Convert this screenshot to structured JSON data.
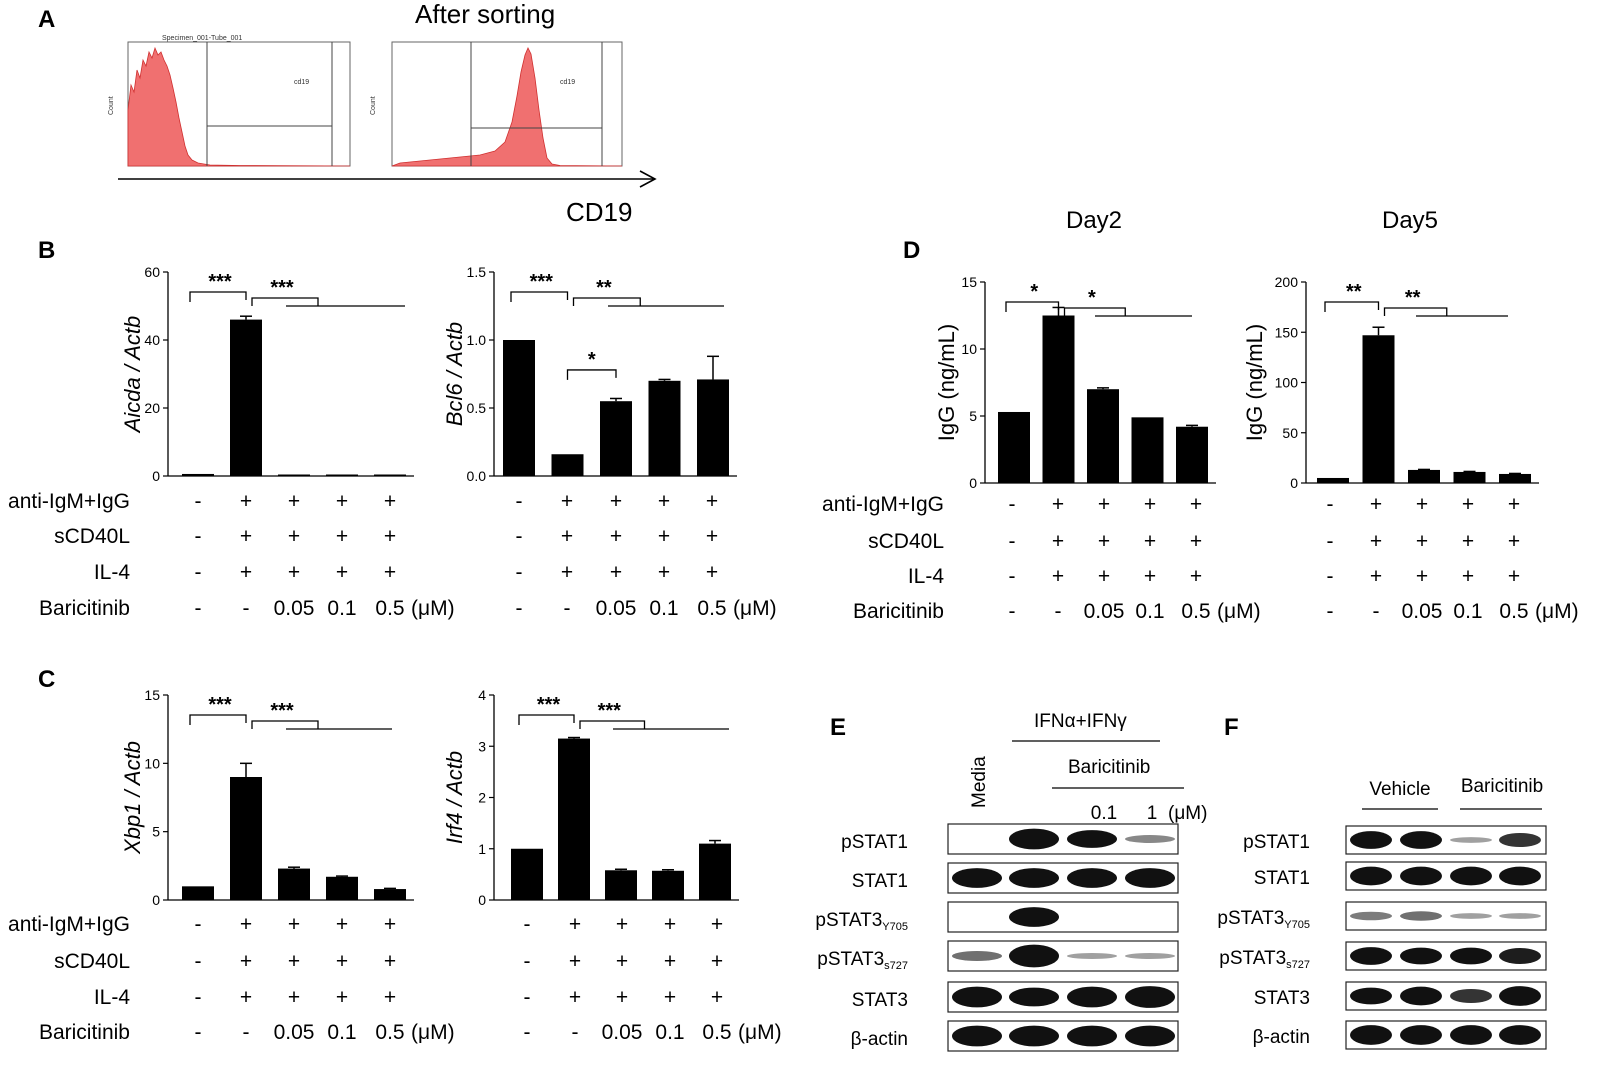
{
  "panel_labels": {
    "A": "A",
    "B": "B",
    "C": "C",
    "D": "D",
    "E": "E",
    "F": "F"
  },
  "flow": {
    "plot1_title": "Specimen_001-Tube_001",
    "plot2_title": "After sorting",
    "gate_label": "cd19",
    "y_label": "Count",
    "x_axis": "CD19"
  },
  "conditions": {
    "row_labels": [
      "anti-IgM+IgG",
      "sCD40L",
      "IL-4",
      "Baricitinib"
    ],
    "rows": [
      [
        "-",
        "+",
        "+",
        "+",
        "+"
      ],
      [
        "-",
        "+",
        "+",
        "+",
        "+"
      ],
      [
        "-",
        "+",
        "+",
        "+",
        "+"
      ],
      [
        "-",
        "-",
        "0.05",
        "0.1",
        "0.5"
      ]
    ],
    "unit": "(μM)"
  },
  "d_titles": [
    "Day2",
    "Day5"
  ],
  "chart_data": [
    {
      "id": "B1",
      "type": "bar",
      "title": "",
      "ylabel": "Aicda / Actb",
      "ylim": [
        0,
        60
      ],
      "yticks": [
        0,
        20,
        40,
        60
      ],
      "values": [
        0.6,
        46,
        0.3,
        0.2,
        0.2
      ],
      "errors": [
        0,
        1,
        0,
        0,
        0
      ],
      "sig": [
        {
          "text": "***",
          "kind": "pair",
          "from": 0,
          "to": 1
        },
        {
          "text": "***",
          "kind": "group",
          "from": 1,
          "to": 4
        }
      ]
    },
    {
      "id": "B2",
      "type": "bar",
      "title": "",
      "ylabel": "Bcl6 / Actb",
      "ylim": [
        0,
        1.5
      ],
      "yticks": [
        0.0,
        0.5,
        1.0,
        1.5
      ],
      "values": [
        1.0,
        0.16,
        0.55,
        0.7,
        0.71
      ],
      "errors": [
        0,
        0,
        0.02,
        0.01,
        0.17
      ],
      "sig": [
        {
          "text": "***",
          "kind": "pair",
          "from": 0,
          "to": 1
        },
        {
          "text": "**",
          "kind": "group",
          "from": 1,
          "to": 4
        },
        {
          "text": "*",
          "kind": "pair",
          "from": 1,
          "to": 2
        }
      ]
    },
    {
      "id": "C1",
      "type": "bar",
      "title": "",
      "ylabel": "Xbp1 / Actb",
      "ylim": [
        0,
        15
      ],
      "yticks": [
        0,
        5,
        10,
        15
      ],
      "values": [
        1.0,
        9.0,
        2.3,
        1.7,
        0.8
      ],
      "errors": [
        0,
        1.0,
        0.1,
        0.05,
        0.05
      ],
      "sig": [
        {
          "text": "***",
          "kind": "pair",
          "from": 0,
          "to": 1
        },
        {
          "text": "***",
          "kind": "group",
          "from": 1,
          "to": 4
        }
      ]
    },
    {
      "id": "C2",
      "type": "bar",
      "title": "",
      "ylabel": "Irf4 / Actb",
      "ylim": [
        0,
        4
      ],
      "yticks": [
        0,
        1,
        2,
        3,
        4
      ],
      "values": [
        1.0,
        3.15,
        0.58,
        0.57,
        1.1
      ],
      "errors": [
        0,
        0.02,
        0.02,
        0.02,
        0.06
      ],
      "sig": [
        {
          "text": "***",
          "kind": "pair",
          "from": 0,
          "to": 1
        },
        {
          "text": "***",
          "kind": "group",
          "from": 1,
          "to": 4
        }
      ]
    },
    {
      "id": "D1",
      "type": "bar",
      "title": "Day2",
      "ylabel": "IgG (ng/mL)",
      "ylim": [
        0,
        15
      ],
      "yticks": [
        0,
        5,
        10,
        15
      ],
      "values": [
        5.3,
        12.5,
        7.0,
        4.9,
        4.2
      ],
      "errors": [
        0,
        0.6,
        0.1,
        0,
        0.1
      ],
      "sig": [
        {
          "text": "*",
          "kind": "pair",
          "from": 0,
          "to": 1
        },
        {
          "text": "*",
          "kind": "group",
          "from": 1,
          "to": 4
        }
      ]
    },
    {
      "id": "D2",
      "type": "bar",
      "title": "Day5",
      "ylabel": "IgG (ng/mL)",
      "ylim": [
        0,
        200
      ],
      "yticks": [
        0,
        50,
        100,
        150,
        200
      ],
      "values": [
        5,
        147,
        13,
        11,
        9
      ],
      "errors": [
        0,
        8,
        0.5,
        0.5,
        0.5
      ],
      "sig": [
        {
          "text": "**",
          "kind": "pair",
          "from": 0,
          "to": 1
        },
        {
          "text": "**",
          "kind": "group",
          "from": 1,
          "to": 4
        }
      ]
    }
  ],
  "blot_e": {
    "header": "IFNα+IFNγ",
    "media": "Media",
    "drug": "Baricitinib",
    "doses": [
      "0.1",
      "1"
    ],
    "unit": "(μM)",
    "rows": [
      "pSTAT1",
      "STAT1",
      "pSTAT3",
      "pSTAT3",
      "STAT3",
      "β-actin"
    ],
    "subs": [
      "",
      "",
      "Y705",
      "s727",
      "",
      ""
    ],
    "intensity": [
      [
        0,
        0.9,
        0.75,
        0.25
      ],
      [
        0.85,
        0.85,
        0.85,
        0.85
      ],
      [
        0,
        0.85,
        0,
        0
      ],
      [
        0.35,
        1.0,
        0.15,
        0.15
      ],
      [
        0.9,
        0.8,
        0.9,
        0.95
      ],
      [
        0.9,
        0.9,
        0.9,
        0.9
      ]
    ]
  },
  "blot_f": {
    "groups": [
      "Vehicle",
      "Baricitinib"
    ],
    "rows": [
      "pSTAT1",
      "STAT1",
      "pSTAT3",
      "pSTAT3",
      "STAT3",
      "β-actin"
    ],
    "subs": [
      "",
      "",
      "Y705",
      "s727",
      "",
      ""
    ],
    "intensity": [
      [
        0.8,
        0.8,
        0.15,
        0.6
      ],
      [
        0.85,
        0.85,
        0.85,
        0.85
      ],
      [
        0.3,
        0.35,
        0.15,
        0.15
      ],
      [
        0.8,
        0.75,
        0.75,
        0.7
      ],
      [
        0.75,
        0.85,
        0.6,
        0.9
      ],
      [
        0.9,
        0.9,
        0.9,
        0.9
      ]
    ]
  }
}
